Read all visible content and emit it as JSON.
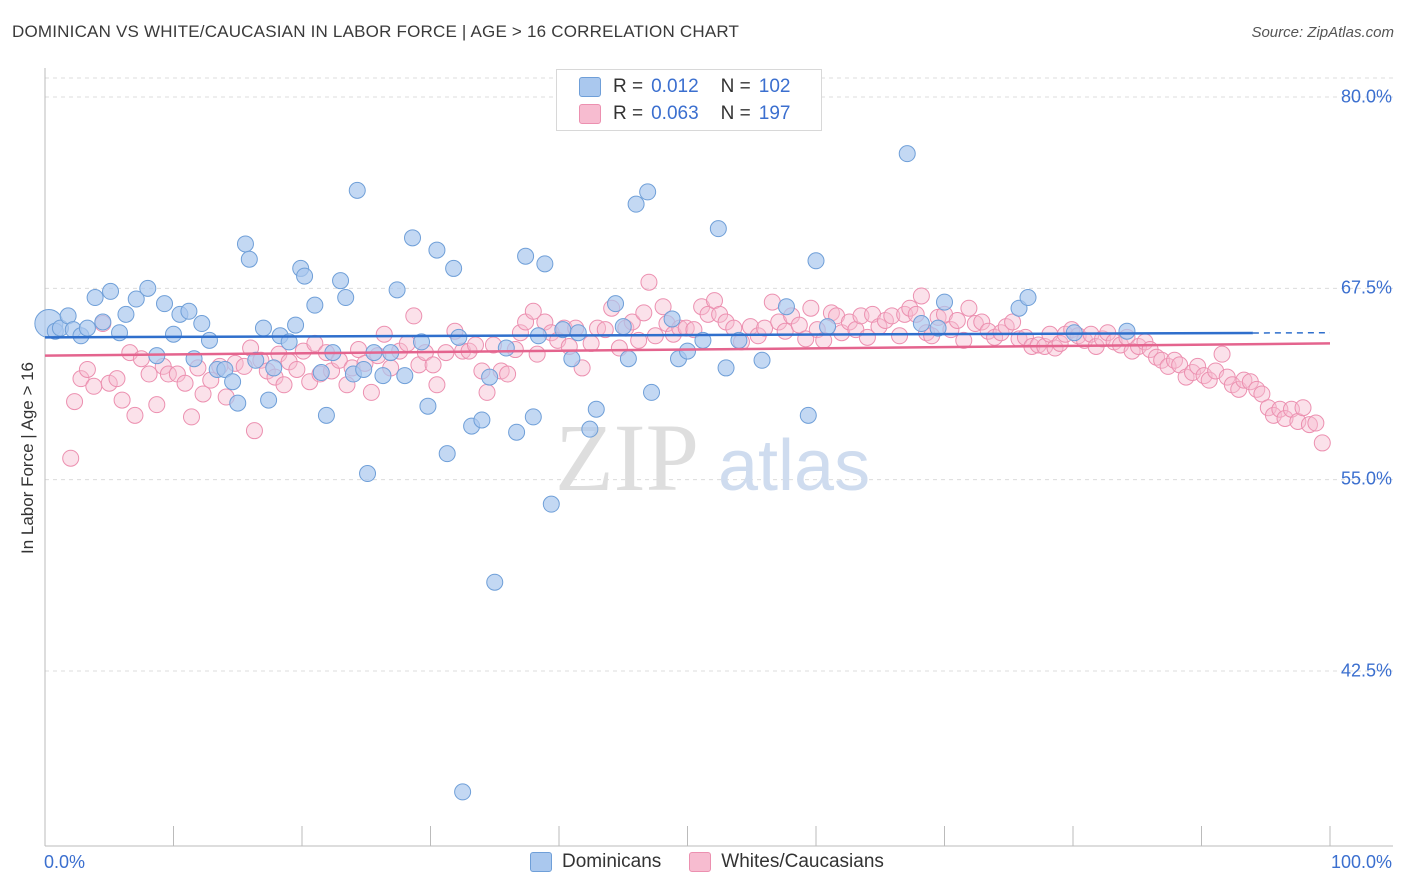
{
  "header": {
    "title": "DOMINICAN VS WHITE/CAUCASIAN IN LABOR FORCE | AGE > 16 CORRELATION CHART",
    "source": "Source: ZipAtlas.com"
  },
  "legend_top": {
    "rows": [
      {
        "r_label": "R =",
        "r_value": "0.012",
        "n_label": "N =",
        "n_value": "102"
      },
      {
        "r_label": "R =",
        "r_value": "0.063",
        "n_label": "N =",
        "n_value": "197"
      }
    ]
  },
  "legend_bottom": {
    "items": [
      {
        "label": "Dominicans"
      },
      {
        "label": "Whites/Caucasians"
      }
    ]
  },
  "watermark": {
    "zip": "ZIP",
    "atlas": "atlas"
  },
  "colors": {
    "blue_fill": "#aac8ee",
    "blue_stroke": "#6f9fd8",
    "blue_line": "#2f6fcc",
    "pink_fill": "#f7bcd0",
    "pink_stroke": "#ec90b0",
    "pink_line": "#e4648e",
    "tick_label": "#3b6fcf",
    "grid": "#dcdcdc"
  },
  "chart_data": {
    "type": "scatter",
    "title": "DOMINICAN VS WHITE/CAUCASIAN IN LABOR FORCE | AGE > 16 CORRELATION CHART",
    "xlabel": "",
    "ylabel": "In Labor Force | Age > 16",
    "xlim": [
      0,
      100
    ],
    "ylim": [
      31,
      82
    ],
    "x_tick_labels": [
      "0.0%",
      "100.0%"
    ],
    "y_ticks": [
      42.5,
      55.0,
      67.5,
      80.0
    ],
    "y_tick_labels": [
      "42.5%",
      "55.0%",
      "67.5%",
      "80.0%"
    ],
    "series": [
      {
        "name": "Dominicans",
        "R": 0.012,
        "N": 102,
        "trend": {
          "x": [
            0,
            100
          ],
          "y": [
            64.3,
            64.6
          ],
          "dashed_from_x": 94
        },
        "points": [
          [
            0.3,
            65.2
          ],
          [
            0.8,
            64.7
          ],
          [
            1.2,
            64.9
          ],
          [
            1.8,
            65.7
          ],
          [
            2.2,
            64.8
          ],
          [
            2.8,
            64.4
          ],
          [
            3.3,
            64.9
          ],
          [
            3.9,
            66.9
          ],
          [
            4.5,
            65.3
          ],
          [
            5.1,
            67.3
          ],
          [
            5.8,
            64.6
          ],
          [
            6.3,
            65.8
          ],
          [
            7.1,
            66.8
          ],
          [
            8.0,
            67.5
          ],
          [
            8.7,
            63.1
          ],
          [
            9.3,
            66.5
          ],
          [
            10.0,
            64.5
          ],
          [
            10.5,
            65.8
          ],
          [
            11.2,
            66.0
          ],
          [
            11.6,
            62.9
          ],
          [
            12.2,
            65.2
          ],
          [
            12.8,
            64.1
          ],
          [
            13.4,
            62.2
          ],
          [
            14.0,
            62.2
          ],
          [
            14.6,
            61.4
          ],
          [
            15.0,
            60.0
          ],
          [
            15.6,
            70.4
          ],
          [
            15.9,
            69.4
          ],
          [
            16.4,
            62.8
          ],
          [
            17.0,
            64.9
          ],
          [
            17.4,
            60.2
          ],
          [
            17.8,
            62.3
          ],
          [
            18.3,
            64.4
          ],
          [
            19.0,
            64.0
          ],
          [
            19.5,
            65.1
          ],
          [
            19.9,
            68.8
          ],
          [
            20.2,
            68.3
          ],
          [
            21.0,
            66.4
          ],
          [
            21.5,
            62.0
          ],
          [
            21.9,
            59.2
          ],
          [
            22.4,
            63.3
          ],
          [
            23.0,
            68.0
          ],
          [
            23.4,
            66.9
          ],
          [
            24.0,
            61.9
          ],
          [
            24.3,
            73.9
          ],
          [
            24.8,
            62.2
          ],
          [
            25.1,
            55.4
          ],
          [
            25.6,
            63.3
          ],
          [
            26.3,
            61.8
          ],
          [
            26.9,
            63.3
          ],
          [
            27.4,
            67.4
          ],
          [
            28.0,
            61.8
          ],
          [
            28.6,
            70.8
          ],
          [
            29.3,
            64.0
          ],
          [
            29.8,
            59.8
          ],
          [
            30.5,
            70.0
          ],
          [
            31.3,
            56.7
          ],
          [
            31.8,
            68.8
          ],
          [
            32.2,
            64.3
          ],
          [
            32.5,
            34.6
          ],
          [
            33.2,
            58.5
          ],
          [
            34.0,
            58.9
          ],
          [
            34.6,
            61.7
          ],
          [
            35.0,
            48.3
          ],
          [
            35.9,
            63.6
          ],
          [
            36.7,
            58.1
          ],
          [
            37.4,
            69.6
          ],
          [
            38.0,
            59.1
          ],
          [
            38.4,
            64.4
          ],
          [
            38.9,
            69.1
          ],
          [
            39.4,
            53.4
          ],
          [
            40.3,
            64.8
          ],
          [
            41.0,
            62.9
          ],
          [
            41.5,
            64.6
          ],
          [
            42.4,
            58.3
          ],
          [
            42.9,
            59.6
          ],
          [
            44.4,
            66.5
          ],
          [
            45.0,
            65.0
          ],
          [
            45.4,
            62.9
          ],
          [
            46.0,
            73.0
          ],
          [
            46.9,
            73.8
          ],
          [
            47.2,
            60.7
          ],
          [
            48.8,
            65.5
          ],
          [
            49.3,
            62.9
          ],
          [
            50.0,
            63.4
          ],
          [
            51.2,
            64.1
          ],
          [
            52.4,
            71.4
          ],
          [
            53.0,
            62.3
          ],
          [
            54.0,
            64.1
          ],
          [
            55.8,
            62.8
          ],
          [
            57.7,
            66.3
          ],
          [
            59.4,
            59.2
          ],
          [
            60.0,
            69.3
          ],
          [
            60.9,
            65.0
          ],
          [
            67.1,
            76.3
          ],
          [
            68.2,
            65.2
          ],
          [
            69.5,
            64.9
          ],
          [
            70.0,
            66.6
          ],
          [
            75.8,
            66.2
          ],
          [
            76.5,
            66.9
          ],
          [
            80.1,
            64.6
          ],
          [
            84.2,
            64.7
          ]
        ]
      },
      {
        "name": "Whites/Caucasians",
        "R": 0.063,
        "N": 197,
        "trend": {
          "x": [
            0,
            100
          ],
          "y": [
            63.1,
            63.9
          ]
        },
        "points": [
          [
            2.0,
            56.4
          ],
          [
            2.3,
            60.1
          ],
          [
            2.8,
            61.6
          ],
          [
            3.3,
            62.2
          ],
          [
            3.8,
            61.1
          ],
          [
            4.5,
            65.2
          ],
          [
            5.0,
            61.3
          ],
          [
            5.6,
            61.6
          ],
          [
            6.0,
            60.2
          ],
          [
            6.6,
            63.3
          ],
          [
            7.0,
            59.2
          ],
          [
            7.5,
            62.9
          ],
          [
            8.1,
            61.9
          ],
          [
            8.7,
            59.9
          ],
          [
            9.2,
            62.4
          ],
          [
            9.6,
            61.9
          ],
          [
            10.3,
            61.9
          ],
          [
            10.9,
            61.3
          ],
          [
            11.4,
            59.1
          ],
          [
            11.9,
            62.3
          ],
          [
            12.3,
            60.6
          ],
          [
            12.9,
            61.5
          ],
          [
            13.6,
            62.4
          ],
          [
            14.1,
            60.4
          ],
          [
            14.8,
            62.6
          ],
          [
            15.5,
            62.4
          ],
          [
            16.0,
            63.6
          ],
          [
            16.3,
            58.2
          ],
          [
            16.8,
            62.8
          ],
          [
            17.3,
            62.1
          ],
          [
            17.9,
            61.7
          ],
          [
            18.2,
            63.2
          ],
          [
            18.6,
            61.2
          ],
          [
            19.0,
            62.7
          ],
          [
            19.6,
            62.2
          ],
          [
            20.1,
            63.4
          ],
          [
            20.6,
            61.4
          ],
          [
            21.0,
            63.9
          ],
          [
            21.4,
            61.9
          ],
          [
            21.9,
            63.3
          ],
          [
            22.3,
            62.1
          ],
          [
            22.9,
            62.8
          ],
          [
            23.5,
            61.2
          ],
          [
            23.9,
            62.3
          ],
          [
            24.4,
            63.5
          ],
          [
            24.9,
            62.6
          ],
          [
            25.4,
            60.7
          ],
          [
            25.9,
            63.1
          ],
          [
            26.4,
            64.5
          ],
          [
            26.9,
            62.3
          ],
          [
            27.6,
            63.4
          ],
          [
            28.2,
            63.9
          ],
          [
            28.7,
            65.7
          ],
          [
            29.1,
            62.5
          ],
          [
            29.6,
            63.3
          ],
          [
            30.2,
            62.5
          ],
          [
            30.5,
            61.2
          ],
          [
            31.2,
            63.3
          ],
          [
            31.9,
            64.7
          ],
          [
            32.5,
            63.4
          ],
          [
            33.0,
            63.4
          ],
          [
            33.5,
            63.8
          ],
          [
            34.0,
            62.1
          ],
          [
            34.4,
            60.7
          ],
          [
            34.9,
            63.8
          ],
          [
            35.5,
            62.1
          ],
          [
            36.0,
            61.9
          ],
          [
            36.6,
            63.5
          ],
          [
            37.0,
            64.6
          ],
          [
            37.4,
            65.3
          ],
          [
            38.0,
            66.0
          ],
          [
            38.3,
            63.2
          ],
          [
            38.9,
            65.3
          ],
          [
            39.4,
            64.6
          ],
          [
            39.9,
            64.1
          ],
          [
            40.4,
            64.9
          ],
          [
            40.8,
            63.7
          ],
          [
            41.3,
            64.9
          ],
          [
            41.8,
            62.3
          ],
          [
            42.5,
            63.9
          ],
          [
            43.0,
            64.9
          ],
          [
            43.6,
            64.8
          ],
          [
            44.1,
            66.2
          ],
          [
            44.7,
            63.6
          ],
          [
            45.2,
            64.9
          ],
          [
            45.7,
            65.3
          ],
          [
            46.2,
            64.1
          ],
          [
            46.6,
            65.9
          ],
          [
            47.0,
            67.9
          ],
          [
            47.5,
            64.4
          ],
          [
            48.1,
            66.3
          ],
          [
            48.4,
            65.2
          ],
          [
            48.9,
            64.5
          ],
          [
            49.4,
            64.9
          ],
          [
            49.9,
            64.9
          ],
          [
            50.5,
            64.8
          ],
          [
            51.1,
            66.3
          ],
          [
            51.6,
            65.8
          ],
          [
            52.1,
            66.7
          ],
          [
            52.5,
            65.8
          ],
          [
            53.0,
            65.3
          ],
          [
            53.6,
            64.9
          ],
          [
            54.2,
            64.0
          ],
          [
            54.9,
            65.0
          ],
          [
            55.5,
            64.4
          ],
          [
            56.0,
            64.9
          ],
          [
            56.6,
            66.6
          ],
          [
            57.1,
            65.3
          ],
          [
            57.6,
            64.7
          ],
          [
            58.1,
            65.7
          ],
          [
            58.7,
            65.1
          ],
          [
            59.2,
            64.2
          ],
          [
            59.6,
            66.2
          ],
          [
            60.1,
            64.8
          ],
          [
            60.6,
            64.1
          ],
          [
            61.2,
            65.9
          ],
          [
            61.6,
            65.7
          ],
          [
            62.0,
            64.6
          ],
          [
            62.6,
            65.3
          ],
          [
            63.1,
            64.8
          ],
          [
            63.5,
            65.7
          ],
          [
            64.0,
            64.3
          ],
          [
            64.4,
            65.8
          ],
          [
            64.9,
            65.0
          ],
          [
            65.4,
            65.4
          ],
          [
            65.9,
            65.7
          ],
          [
            66.5,
            64.4
          ],
          [
            66.9,
            65.8
          ],
          [
            67.3,
            66.2
          ],
          [
            67.8,
            65.8
          ],
          [
            68.2,
            67.0
          ],
          [
            68.6,
            64.6
          ],
          [
            69.0,
            64.4
          ],
          [
            69.5,
            65.6
          ],
          [
            70.0,
            65.8
          ],
          [
            70.5,
            64.8
          ],
          [
            71.0,
            65.4
          ],
          [
            71.5,
            64.1
          ],
          [
            71.9,
            66.2
          ],
          [
            72.4,
            65.2
          ],
          [
            72.9,
            65.3
          ],
          [
            73.4,
            64.7
          ],
          [
            73.9,
            64.3
          ],
          [
            74.4,
            64.6
          ],
          [
            74.8,
            65.0
          ],
          [
            75.3,
            65.3
          ],
          [
            75.8,
            64.2
          ],
          [
            76.3,
            64.3
          ],
          [
            76.8,
            63.7
          ],
          [
            77.3,
            63.8
          ],
          [
            77.8,
            63.7
          ],
          [
            78.2,
            64.5
          ],
          [
            78.6,
            63.6
          ],
          [
            79.0,
            63.9
          ],
          [
            79.4,
            64.5
          ],
          [
            79.9,
            64.8
          ],
          [
            80.4,
            64.4
          ],
          [
            80.9,
            64.1
          ],
          [
            81.4,
            64.5
          ],
          [
            81.8,
            63.7
          ],
          [
            82.3,
            64.2
          ],
          [
            82.7,
            64.6
          ],
          [
            83.2,
            64.0
          ],
          [
            83.7,
            63.8
          ],
          [
            84.2,
            64.3
          ],
          [
            84.6,
            63.4
          ],
          [
            85.1,
            63.7
          ],
          [
            85.6,
            64.0
          ],
          [
            86.0,
            63.5
          ],
          [
            86.5,
            63.0
          ],
          [
            86.9,
            62.8
          ],
          [
            87.4,
            62.4
          ],
          [
            87.9,
            62.8
          ],
          [
            88.3,
            62.5
          ],
          [
            88.8,
            61.7
          ],
          [
            89.3,
            62.0
          ],
          [
            89.7,
            62.4
          ],
          [
            90.2,
            61.8
          ],
          [
            90.6,
            61.5
          ],
          [
            91.1,
            62.1
          ],
          [
            91.6,
            63.2
          ],
          [
            92.0,
            61.7
          ],
          [
            92.4,
            61.2
          ],
          [
            92.9,
            60.9
          ],
          [
            93.3,
            61.5
          ],
          [
            93.8,
            61.4
          ],
          [
            94.3,
            60.9
          ],
          [
            94.7,
            60.6
          ],
          [
            95.2,
            59.7
          ],
          [
            95.6,
            59.2
          ],
          [
            96.1,
            59.6
          ],
          [
            96.5,
            59.0
          ],
          [
            97.0,
            59.6
          ],
          [
            97.5,
            58.8
          ],
          [
            97.9,
            59.7
          ],
          [
            98.4,
            58.6
          ],
          [
            98.9,
            58.7
          ],
          [
            99.4,
            57.4
          ]
        ]
      }
    ]
  }
}
